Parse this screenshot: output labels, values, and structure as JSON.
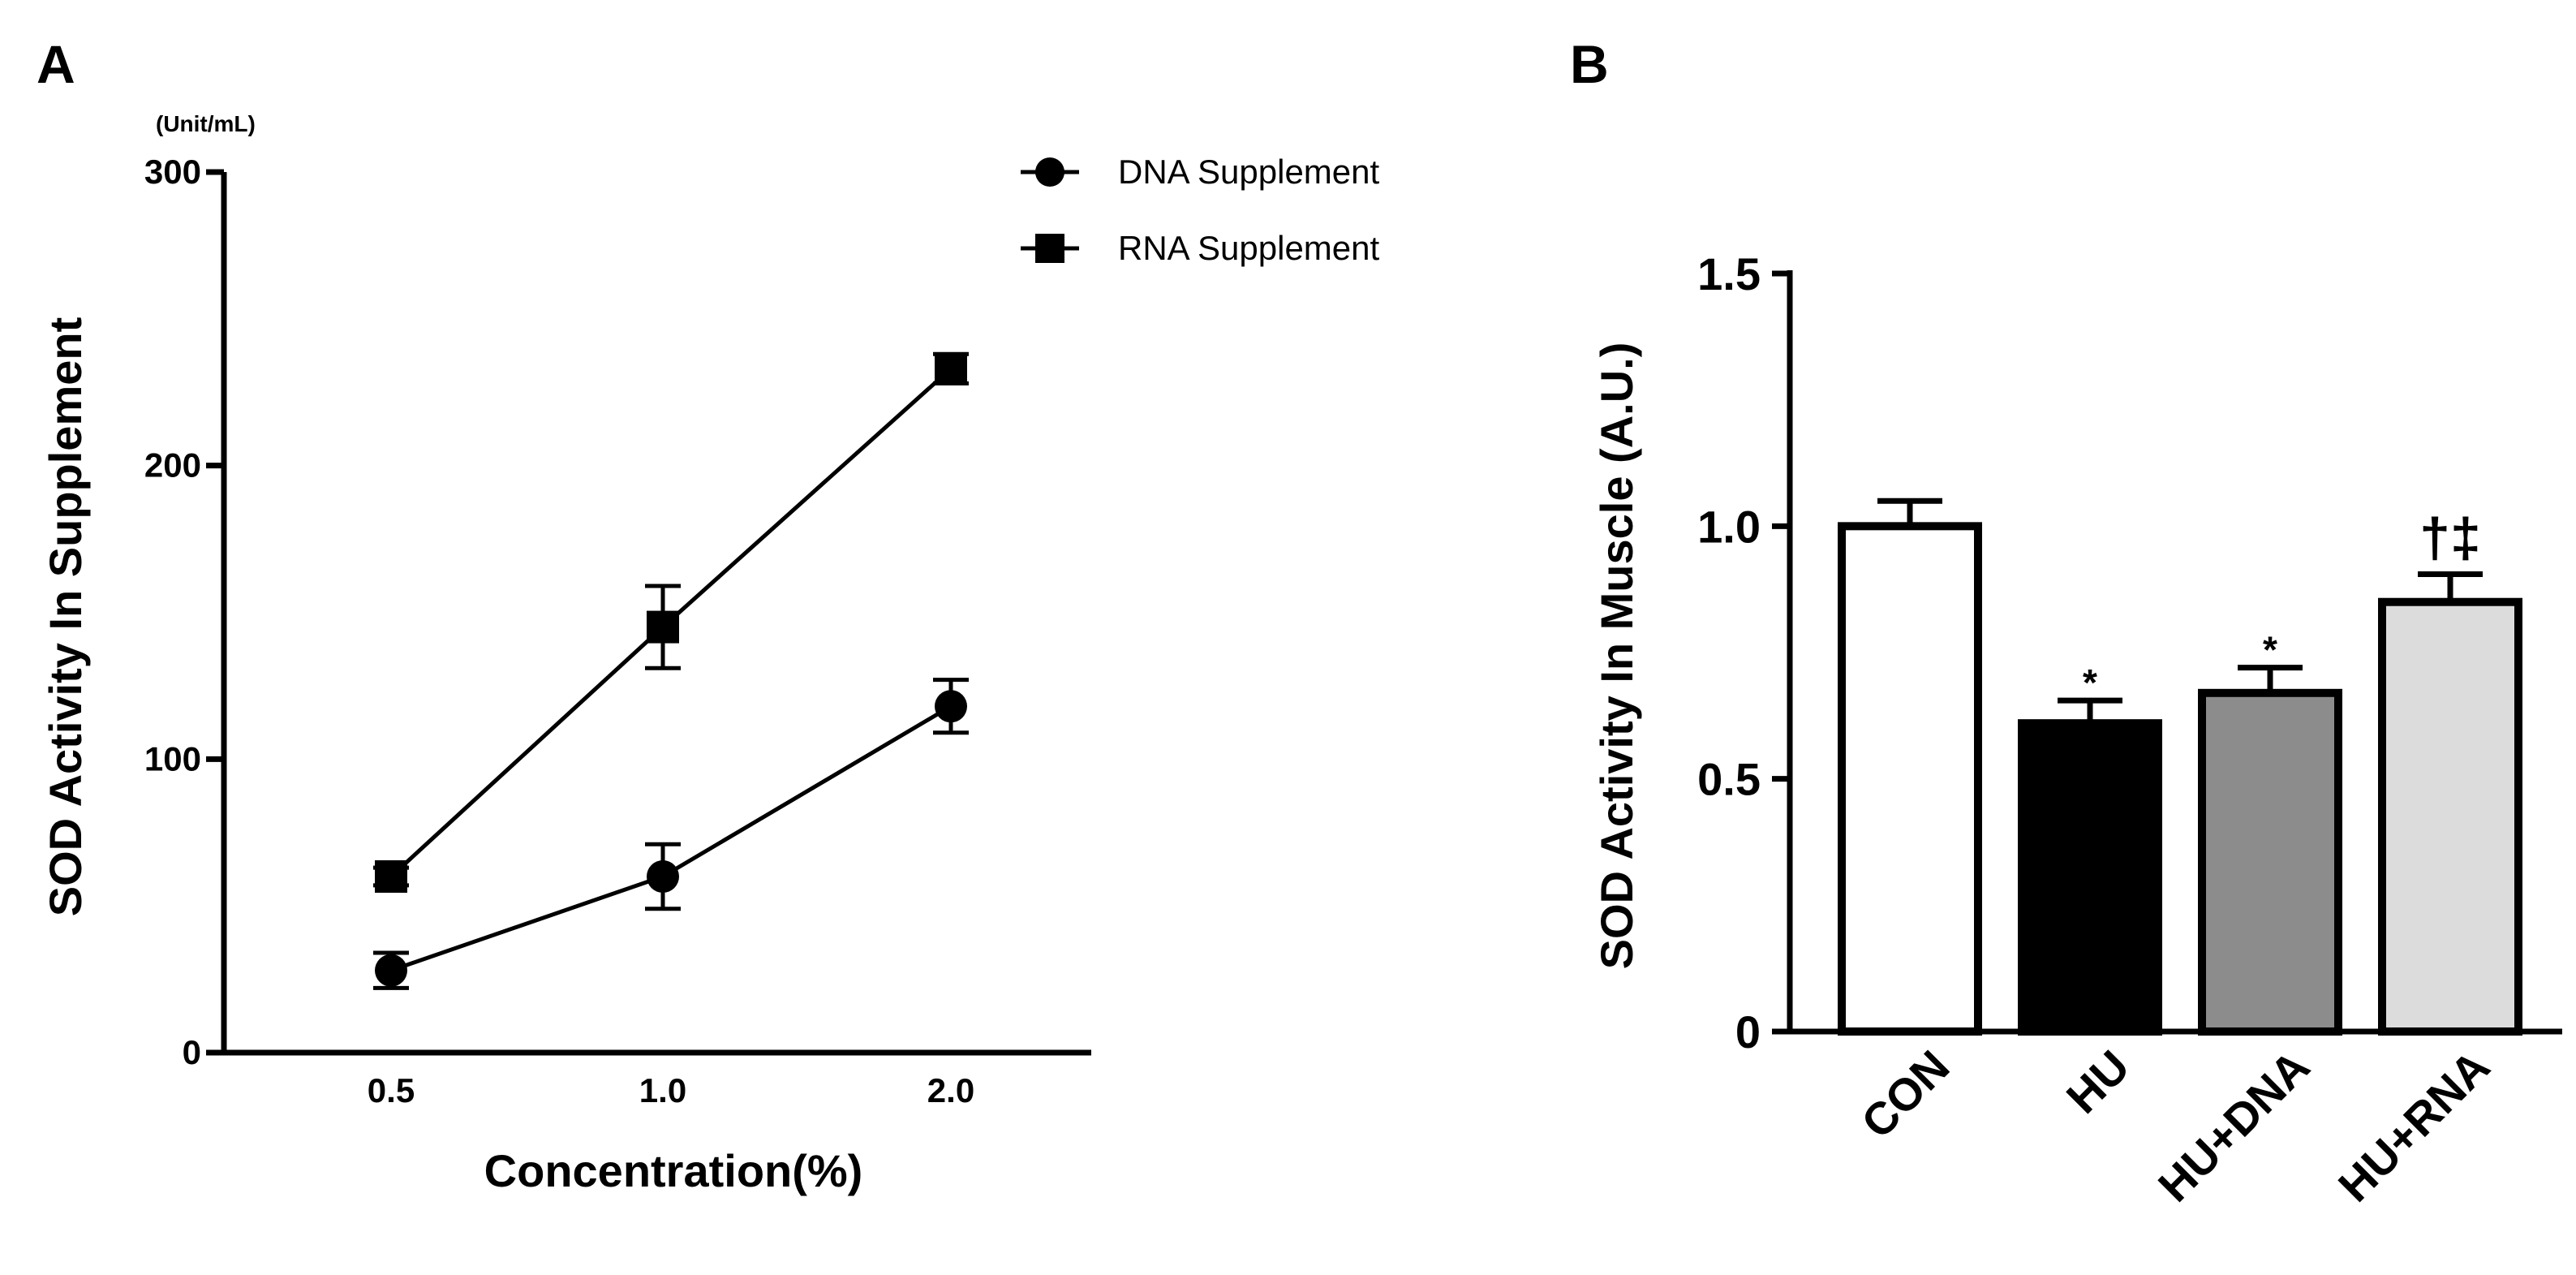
{
  "panels": {
    "a": {
      "letter": "A"
    },
    "b": {
      "letter": "B"
    }
  },
  "chart_data": [
    {
      "type": "line",
      "panel": "A",
      "unit": "(Unit/mL)",
      "ylabel": "SOD  Activity In Supplement",
      "xlabel": "Concentration(%)",
      "categories": [
        "0.5",
        "1.0",
        "2.0"
      ],
      "ylim": [
        0,
        300
      ],
      "yticks": [
        0,
        100,
        200,
        300
      ],
      "ytick_labels": [
        "0",
        "100",
        "200",
        "300"
      ],
      "grid": false,
      "legend_position": "top-right",
      "series": [
        {
          "name": "DNA Supplement",
          "marker": "circle",
          "values": [
            28,
            60,
            118
          ],
          "errors": [
            6,
            11,
            9
          ]
        },
        {
          "name": "RNA Supplement",
          "marker": "square",
          "values": [
            60,
            145,
            233
          ],
          "errors": [
            3,
            14,
            5
          ]
        }
      ]
    },
    {
      "type": "bar",
      "panel": "B",
      "ylabel": "SOD  Activity In Muscle (A.U.)",
      "categories": [
        "CON",
        "HU",
        "HU+DNA",
        "HU+RNA"
      ],
      "values": [
        1.0,
        0.61,
        0.67,
        0.85
      ],
      "errors": [
        0.05,
        0.045,
        0.05,
        0.055
      ],
      "fills": [
        "#ffffff",
        "#000000",
        "#8c8c8c",
        "#dcdcdc"
      ],
      "annotations": [
        "",
        "*",
        "*",
        "†‡"
      ],
      "ylim": [
        0,
        1.5
      ],
      "yticks": [
        0,
        0.5,
        1.0,
        1.5
      ],
      "ytick_labels": [
        "0",
        "0.5",
        "1.0",
        "1.5"
      ],
      "grid": false
    }
  ]
}
